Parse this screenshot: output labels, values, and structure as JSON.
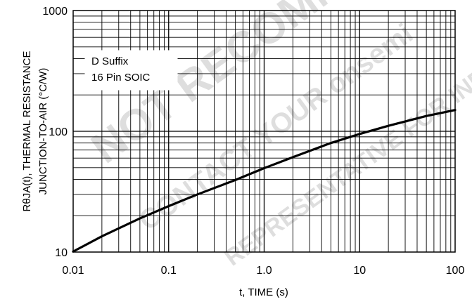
{
  "chart_data": {
    "type": "line",
    "title": "",
    "xlabel": "t, TIME (s)",
    "ylabel_line1": "RθJA(t), THERMAL RESISTANCE",
    "ylabel_line2": "JUNCTION-TO-AIR (°C/W)",
    "x_scale": "log",
    "y_scale": "log",
    "xlim": [
      0.01,
      100
    ],
    "ylim": [
      10,
      1000
    ],
    "grid": true,
    "x_tick_labels": [
      "0.01",
      "0.1",
      "1.0",
      "10",
      "100"
    ],
    "y_tick_labels": [
      "10",
      "100",
      "1000"
    ],
    "legend": {
      "placement": "top-left",
      "lines": [
        "D Suffix",
        "16 Pin SOIC"
      ]
    },
    "series": [
      {
        "color": "#000000",
        "x": [
          0.01,
          0.02,
          0.05,
          0.1,
          0.2,
          0.5,
          1.0,
          2.0,
          5.0,
          10,
          20,
          50,
          100
        ],
        "y": [
          10.1,
          13.5,
          19.0,
          24.0,
          30.0,
          39.5,
          49.5,
          61.0,
          80.0,
          95.0,
          111.0,
          134.0,
          150.0
        ]
      }
    ]
  },
  "watermark": {
    "lines": [
      "NOT RECOMMENDED FOR NEW DESIGN",
      "CONTACT YOUR onsemi",
      "REPRESENTATIVE FOR INFORMATION"
    ]
  }
}
